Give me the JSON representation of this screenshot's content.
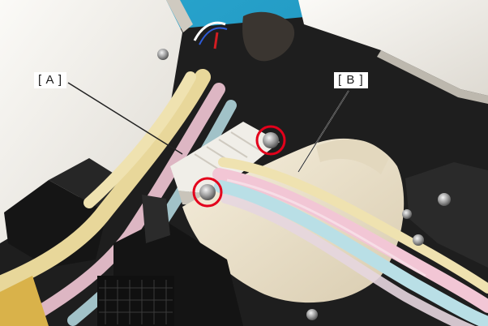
{
  "callouts": {
    "a": {
      "label": "[ A ]"
    },
    "b": {
      "label": "[ B ]"
    }
  },
  "highlight": {
    "marker_color": "#e3001b",
    "leader_color": "#222222"
  },
  "scene_colors": {
    "background_teal": "#1f9cc6",
    "printer_body_white": "#f3f1ec",
    "tube_pink": "#f2c6d5",
    "tube_blue": "#b9dfe6",
    "tube_yellow": "#e8d79a",
    "ink_housing": "#f1e8d2",
    "dark_frame": "#1b1b1b"
  }
}
